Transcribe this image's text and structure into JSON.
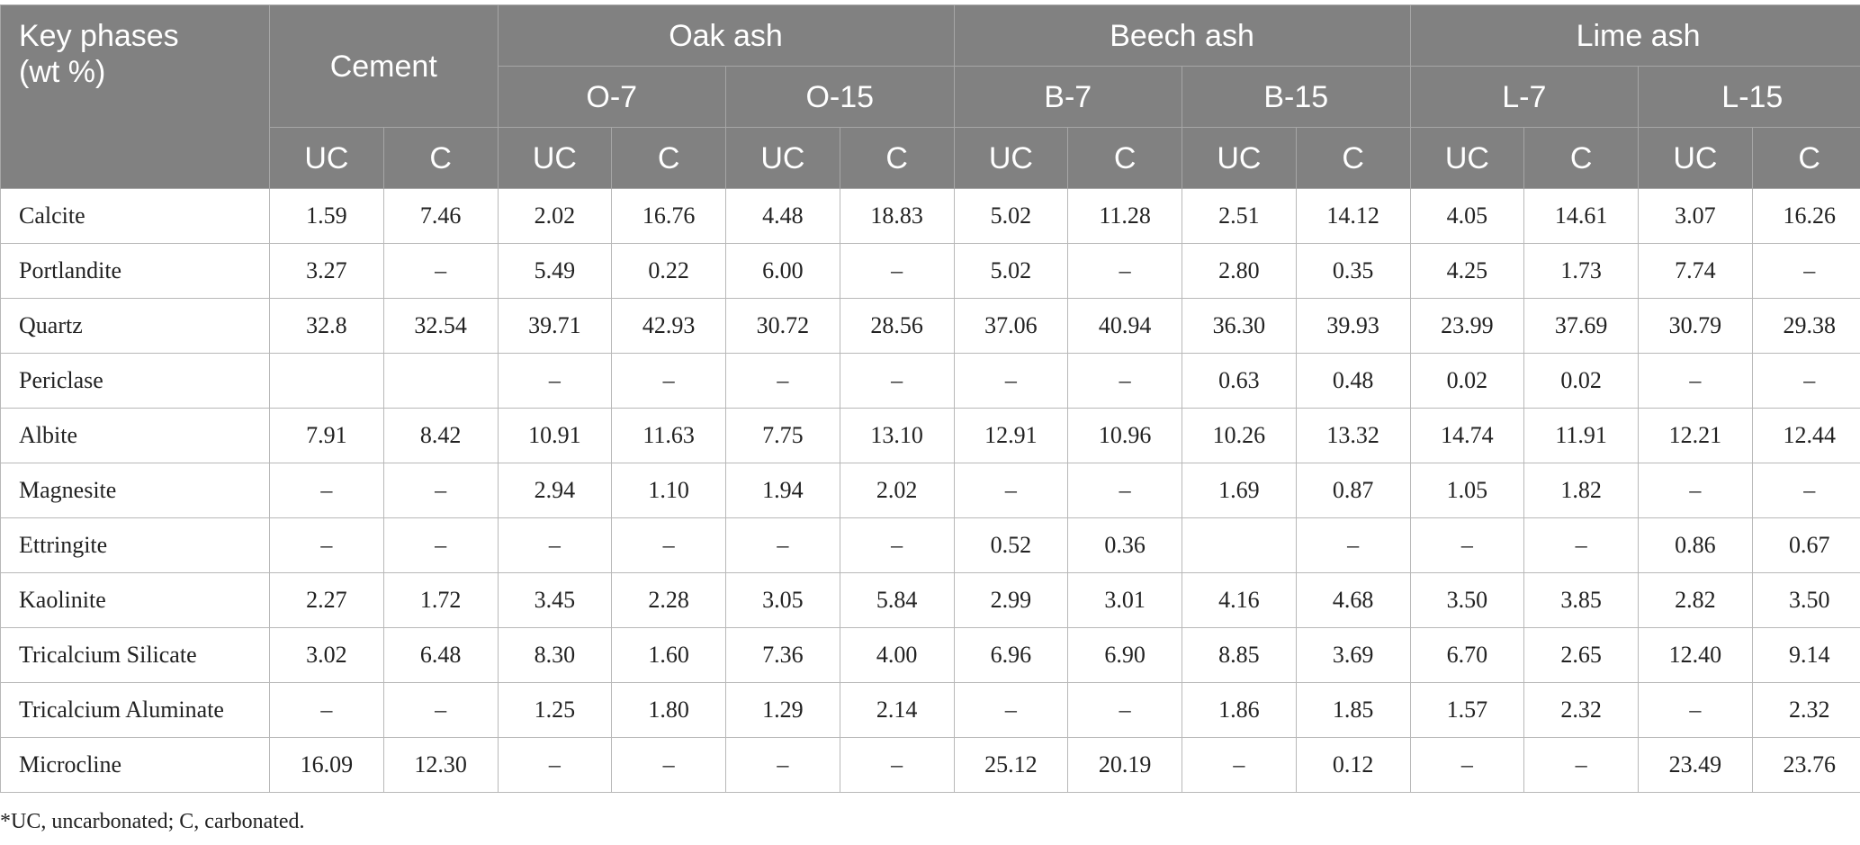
{
  "header": {
    "key_label_line1": "Key phases",
    "key_label_line2": "(wt %)",
    "groups": [
      "Cement",
      "Oak ash",
      "Beech ash",
      "Lime ash"
    ],
    "subgroups": [
      "O-7",
      "O-15",
      "B-7",
      "B-15",
      "L-7",
      "L-15"
    ],
    "conditions": [
      "UC",
      "C",
      "UC",
      "C",
      "UC",
      "C",
      "UC",
      "C",
      "UC",
      "C",
      "UC",
      "C",
      "UC",
      "C"
    ]
  },
  "rows": [
    {
      "phase": "Calcite",
      "values": [
        "1.59",
        "7.46",
        "2.02",
        "16.76",
        "4.48",
        "18.83",
        "5.02",
        "11.28",
        "2.51",
        "14.12",
        "4.05",
        "14.61",
        "3.07",
        "16.26"
      ]
    },
    {
      "phase": "Portlandite",
      "values": [
        "3.27",
        "–",
        "5.49",
        "0.22",
        "6.00",
        "–",
        "5.02",
        "–",
        "2.80",
        "0.35",
        "4.25",
        "1.73",
        "7.74",
        "–"
      ]
    },
    {
      "phase": "Quartz",
      "values": [
        "32.8",
        "32.54",
        "39.71",
        "42.93",
        "30.72",
        "28.56",
        "37.06",
        "40.94",
        "36.30",
        "39.93",
        "23.99",
        "37.69",
        "30.79",
        "29.38"
      ]
    },
    {
      "phase": "Periclase",
      "values": [
        "",
        "",
        "–",
        "–",
        "–",
        "–",
        "–",
        "–",
        "0.63",
        "0.48",
        "0.02",
        "0.02",
        "–",
        "–"
      ]
    },
    {
      "phase": "Albite",
      "values": [
        "7.91",
        "8.42",
        "10.91",
        "11.63",
        "7.75",
        "13.10",
        "12.91",
        "10.96",
        "10.26",
        "13.32",
        "14.74",
        "11.91",
        "12.21",
        "12.44"
      ]
    },
    {
      "phase": "Magnesite",
      "values": [
        "–",
        "–",
        "2.94",
        "1.10",
        "1.94",
        "2.02",
        "–",
        "–",
        "1.69",
        "0.87",
        "1.05",
        "1.82",
        "–",
        "–"
      ]
    },
    {
      "phase": "Ettringite",
      "values": [
        "–",
        "–",
        "–",
        "–",
        "–",
        "–",
        "0.52",
        "0.36",
        "",
        "–",
        "–",
        "–",
        "0.86",
        "0.67"
      ]
    },
    {
      "phase": "Kaolinite",
      "values": [
        "2.27",
        "1.72",
        "3.45",
        "2.28",
        "3.05",
        "5.84",
        "2.99",
        "3.01",
        "4.16",
        "4.68",
        "3.50",
        "3.85",
        "2.82",
        "3.50"
      ]
    },
    {
      "phase": "Tricalcium Silicate",
      "values": [
        "3.02",
        "6.48",
        "8.30",
        "1.60",
        "7.36",
        "4.00",
        "6.96",
        "6.90",
        "8.85",
        "3.69",
        "6.70",
        "2.65",
        "12.40",
        "9.14"
      ]
    },
    {
      "phase": "Tricalcium Aluminate",
      "values": [
        "–",
        "–",
        "1.25",
        "1.80",
        "1.29",
        "2.14",
        "–",
        "–",
        "1.86",
        "1.85",
        "1.57",
        "2.32",
        "–",
        "2.32"
      ]
    },
    {
      "phase": "Microcline",
      "values": [
        "16.09",
        "12.30",
        "–",
        "–",
        "–",
        "–",
        "25.12",
        "20.19",
        "–",
        "0.12",
        "–",
        "–",
        "23.49",
        "23.76"
      ]
    }
  ],
  "footnote": "*UC, uncarbonated; C, carbonated."
}
